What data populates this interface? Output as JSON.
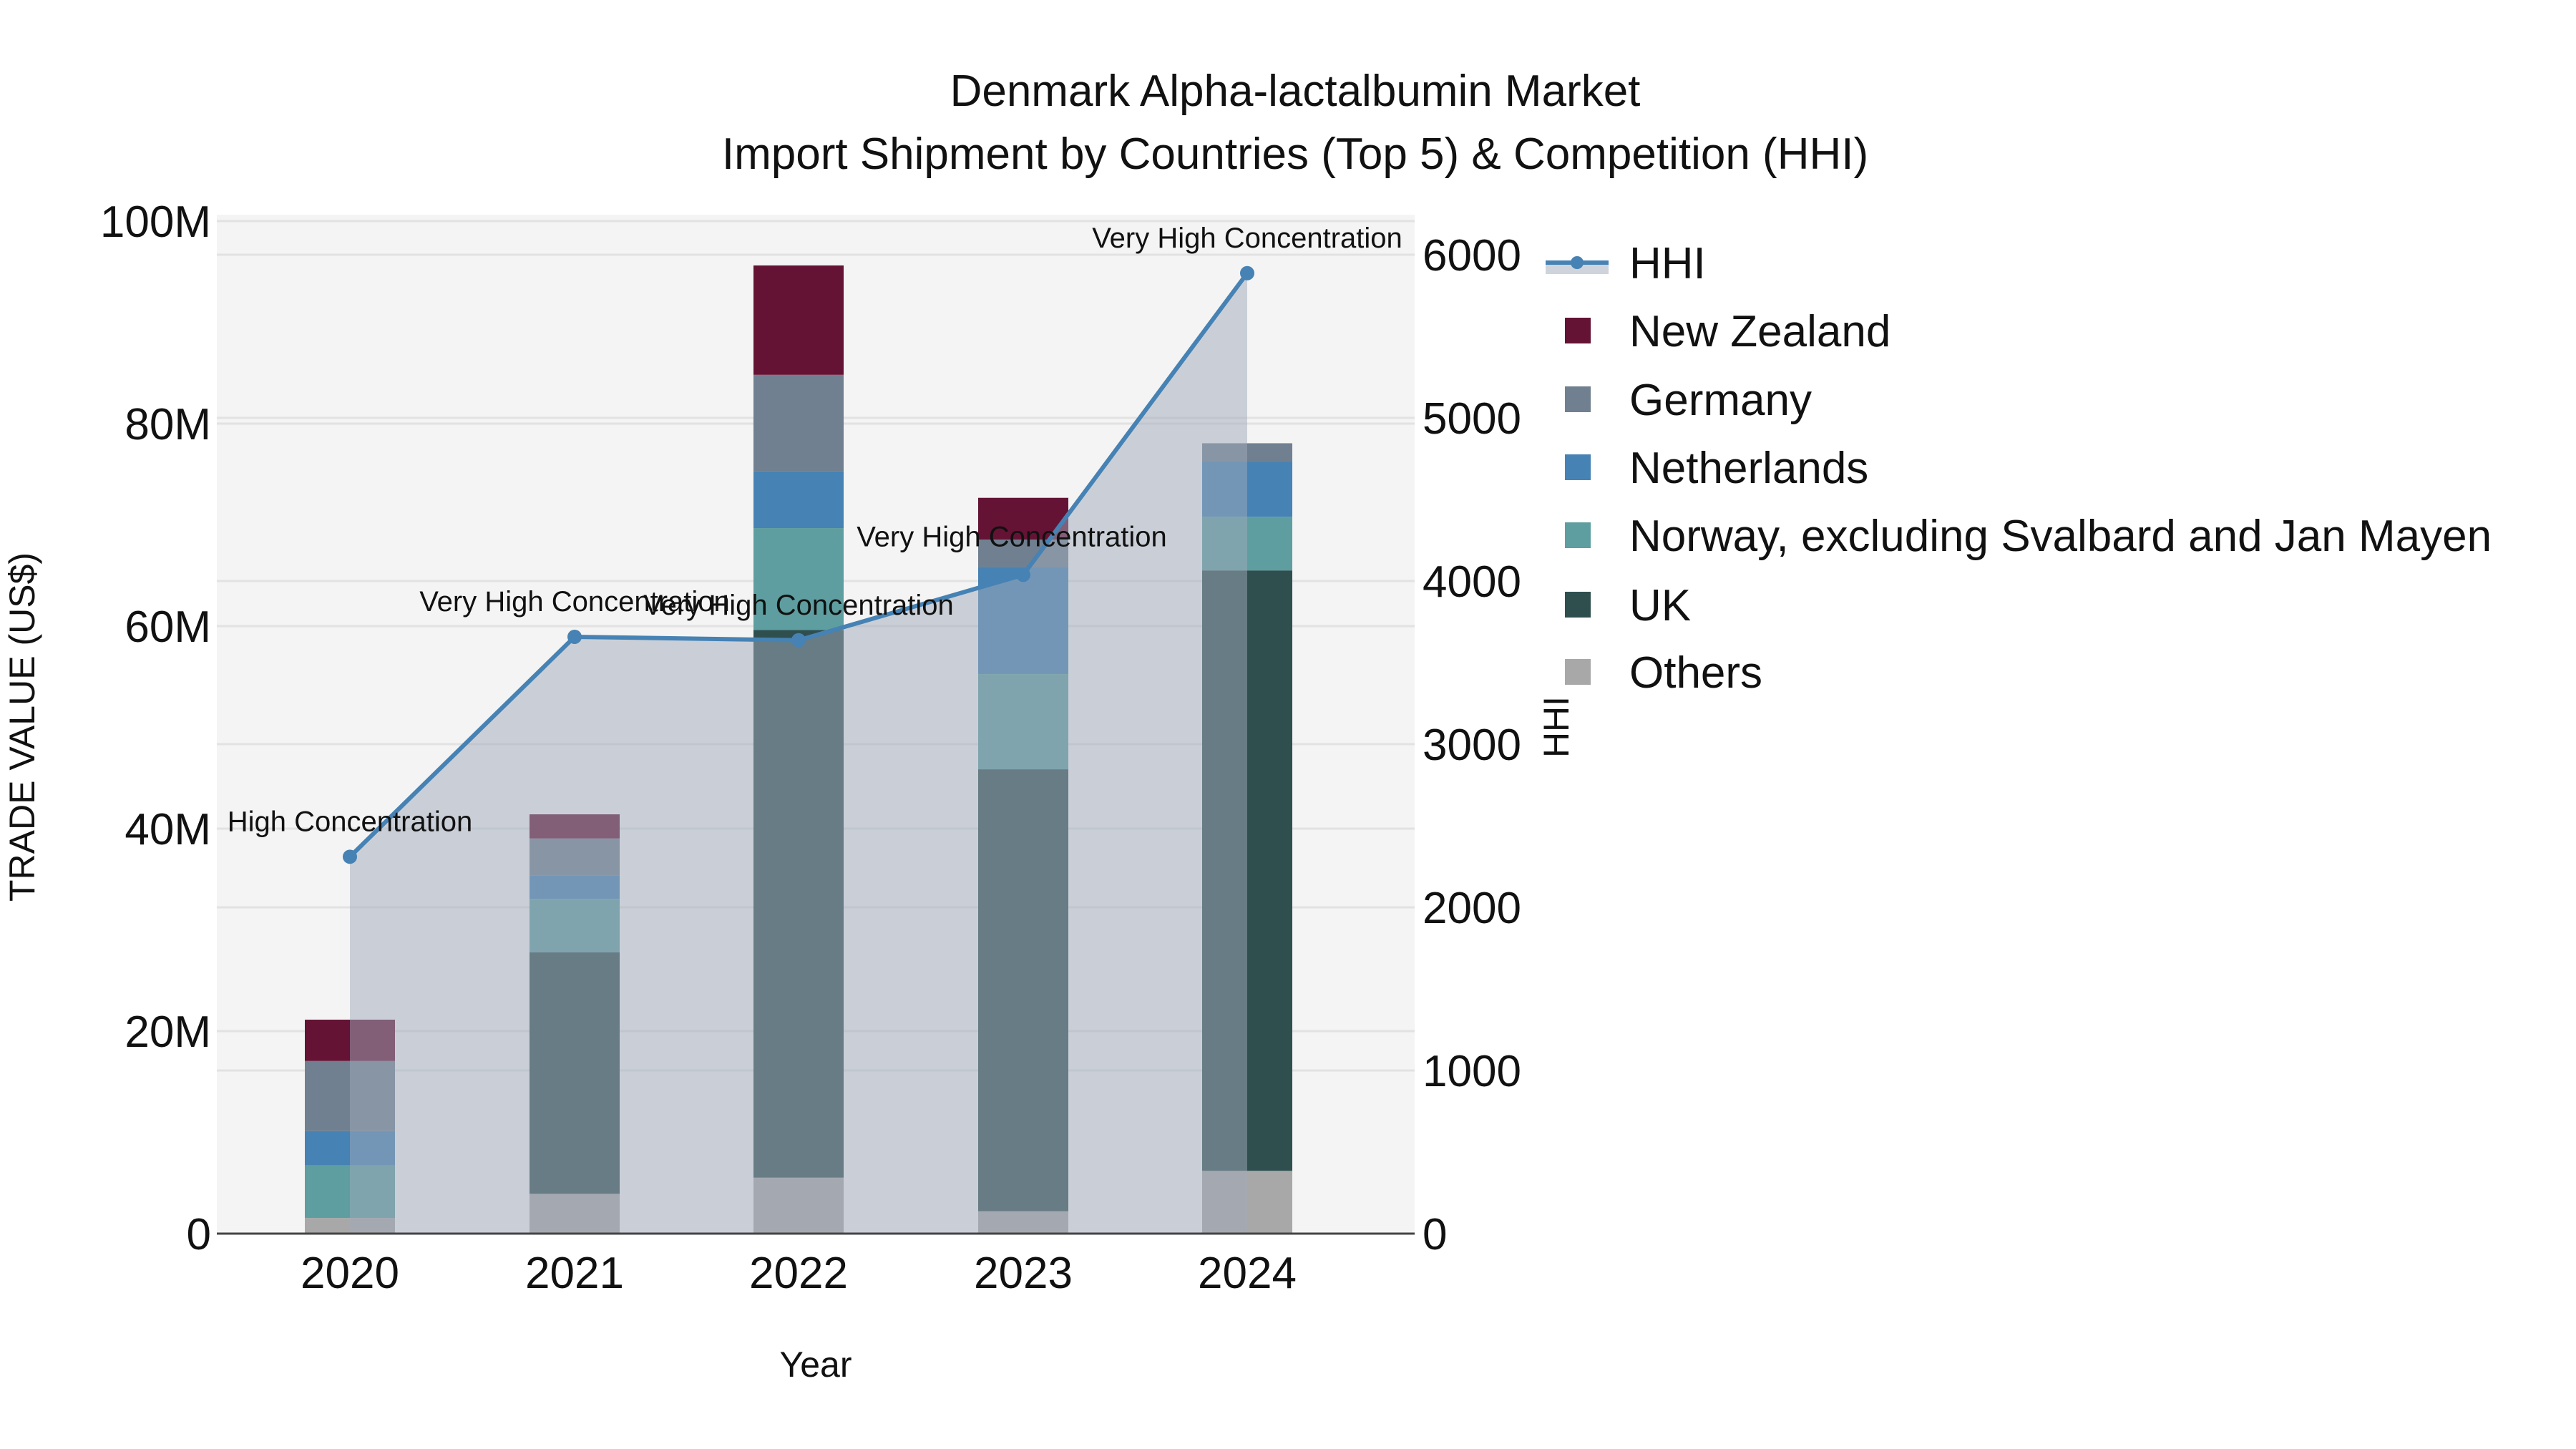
{
  "chart_data": {
    "type": "bar",
    "title": "Denmark Alpha-lactalbumin Market",
    "subtitle": "Import Shipment by Countries (Top 5) & Competition (HHI)",
    "xlabel": "Year",
    "ylabel": "TRADE VALUE (US$)",
    "y2label": "HHI",
    "categories": [
      "2020",
      "2021",
      "2022",
      "2023",
      "2024"
    ],
    "ylim": [
      0,
      100000000
    ],
    "y2lim": [
      0,
      6000
    ],
    "yticks": [
      {
        "value": 0,
        "label": "0"
      },
      {
        "value": 20000000,
        "label": "20M"
      },
      {
        "value": 40000000,
        "label": "40M"
      },
      {
        "value": 60000000,
        "label": "60M"
      },
      {
        "value": 80000000,
        "label": "80M"
      },
      {
        "value": 100000000,
        "label": "100M"
      }
    ],
    "y2ticks": [
      {
        "value": 0,
        "label": "0"
      },
      {
        "value": 1000,
        "label": "1000"
      },
      {
        "value": 2000,
        "label": "2000"
      },
      {
        "value": 3000,
        "label": "3000"
      },
      {
        "value": 4000,
        "label": "4000"
      },
      {
        "value": 5000,
        "label": "5000"
      },
      {
        "value": 6000,
        "label": "6000"
      }
    ],
    "stacked": true,
    "series": [
      {
        "name": "Others",
        "color": "#a8a8a8",
        "values": [
          1550000,
          3930000,
          5530000,
          2210000,
          6200000
        ]
      },
      {
        "name": "UK",
        "color": "#2f4f4f",
        "values": [
          0,
          23850000,
          54080000,
          43650000,
          59300000
        ]
      },
      {
        "name": "Norway, excluding Svalbard and Jan Mayen",
        "color": "#5f9ea0",
        "values": [
          5180000,
          5280000,
          10070000,
          9400000,
          5300000
        ]
      },
      {
        "name": "Netherlands",
        "color": "#4682b4",
        "values": [
          3390000,
          2320000,
          5610000,
          10600000,
          5420000
        ]
      },
      {
        "name": "Germany",
        "color": "#708090",
        "values": [
          6930000,
          3650000,
          9530000,
          2690000,
          1840000
        ]
      },
      {
        "name": "New Zealand",
        "color": "#641334",
        "values": [
          4080000,
          2380000,
          10800000,
          4120000,
          0
        ]
      }
    ],
    "line_series": {
      "name": "HHI",
      "axis": "y2",
      "color": "#4682b4",
      "fill_color": "rgba(160,170,185,0.5)",
      "values": [
        2310,
        3658,
        3637,
        4038,
        5887
      ],
      "annotations": [
        "High Concentration",
        "Very High Concentration",
        "Very High Concentration",
        "Very High Concentration",
        "Very High Concentration"
      ]
    },
    "legend": {
      "position": "right",
      "items": [
        "HHI",
        "New Zealand",
        "Germany",
        "Netherlands",
        "Norway, excluding Svalbard and Jan Mayen",
        "UK",
        "Others"
      ]
    },
    "grid": true,
    "plot_bgcolor": "#f4f4f4"
  }
}
